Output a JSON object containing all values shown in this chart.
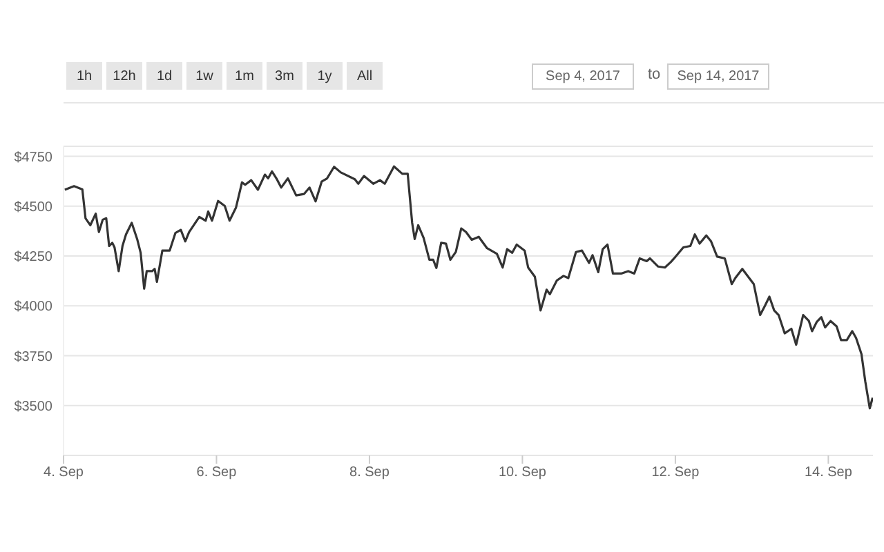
{
  "chart_data": {
    "type": "line",
    "annotations": [
      "1h",
      "12h",
      "1d",
      "1w",
      "1m",
      "3m",
      "1y",
      "All",
      "Sep 4, 2017",
      "to",
      "Sep 14, 2017"
    ],
    "x": [
      "2017-09-04T00:24",
      "2017-09-04T03:18",
      "2017-09-04T05:54",
      "2017-09-04T06:54",
      "2017-09-04T08:24",
      "2017-09-04T10:06",
      "2017-09-04T11:06",
      "2017-09-04T12:18",
      "2017-09-04T13:24",
      "2017-09-04T14:18",
      "2017-09-04T15:18",
      "2017-09-04T16:00",
      "2017-09-04T17:18",
      "2017-09-04T18:30",
      "2017-09-04T19:36",
      "2017-09-04T21:24",
      "2017-09-04T23:06",
      "2017-09-05T00:12",
      "2017-09-05T01:18",
      "2017-09-05T02:06",
      "2017-09-05T03:48",
      "2017-09-05T04:36",
      "2017-09-05T05:18",
      "2017-09-05T07:00",
      "2017-09-05T09:18",
      "2017-09-05T11:06",
      "2017-09-05T12:48",
      "2017-09-05T14:12",
      "2017-09-05T15:24",
      "2017-09-05T18:36",
      "2017-09-05T20:36",
      "2017-09-05T21:24",
      "2017-09-05T22:36",
      "2017-09-06T00:30",
      "2017-09-06T02:36",
      "2017-09-06T04:06",
      "2017-09-06T06:06",
      "2017-09-06T08:00",
      "2017-09-06T09:00",
      "2017-09-06T10:54",
      "2017-09-06T13:00",
      "2017-09-06T15:12",
      "2017-09-06T16:12",
      "2017-09-06T17:24",
      "2017-09-06T18:48",
      "2017-09-06T20:18",
      "2017-09-06T22:24",
      "2017-09-07T01:00",
      "2017-09-07T03:30",
      "2017-09-07T05:12",
      "2017-09-07T07:06",
      "2017-09-07T09:00",
      "2017-09-07T10:42",
      "2017-09-07T12:54",
      "2017-09-07T15:00",
      "2017-09-07T19:24",
      "2017-09-07T20:30",
      "2017-09-07T22:18",
      "2017-09-08T01:12",
      "2017-09-08T03:18",
      "2017-09-08T04:48",
      "2017-09-08T07:42",
      "2017-09-08T10:18",
      "2017-09-08T12:00",
      "2017-09-08T13:24",
      "2017-09-08T14:12",
      "2017-09-08T15:18",
      "2017-09-08T17:00",
      "2017-09-08T18:48",
      "2017-09-08T20:00",
      "2017-09-08T21:00",
      "2017-09-08T22:30",
      "2017-09-09T00:00",
      "2017-09-09T01:24",
      "2017-09-09T03:06",
      "2017-09-09T04:48",
      "2017-09-09T06:18",
      "2017-09-09T08:06",
      "2017-09-09T10:18",
      "2017-09-09T12:54",
      "2017-09-09T16:00",
      "2017-09-09T17:48",
      "2017-09-09T19:12",
      "2017-09-09T20:48",
      "2017-09-09T22:12",
      "2017-09-10T00:42",
      "2017-09-10T01:48",
      "2017-09-10T03:54",
      "2017-09-10T05:42",
      "2017-09-10T07:36",
      "2017-09-10T08:36",
      "2017-09-10T10:48",
      "2017-09-10T12:54",
      "2017-09-10T14:24",
      "2017-09-10T16:48",
      "2017-09-10T18:42",
      "2017-09-10T20:54",
      "2017-09-10T22:00",
      "2017-09-10T23:48",
      "2017-09-11T01:12",
      "2017-09-11T02:42",
      "2017-09-11T04:24",
      "2017-09-11T07:00",
      "2017-09-11T09:12",
      "2017-09-11T11:06",
      "2017-09-11T12:48",
      "2017-09-11T15:00",
      "2017-09-11T16:00",
      "2017-09-11T18:36",
      "2017-09-11T20:42",
      "2017-09-11T22:36",
      "2017-09-11T23:36",
      "2017-09-12T02:30",
      "2017-09-12T04:42",
      "2017-09-12T06:06",
      "2017-09-12T07:36",
      "2017-09-12T09:42",
      "2017-09-12T11:12",
      "2017-09-12T13:06",
      "2017-09-12T15:30",
      "2017-09-12T17:42",
      "2017-09-12T18:48",
      "2017-09-12T21:00",
      "2017-09-13T00:36",
      "2017-09-13T02:36",
      "2017-09-13T04:06",
      "2017-09-13T05:30",
      "2017-09-13T07:00",
      "2017-09-13T08:24",
      "2017-09-13T10:18",
      "2017-09-13T12:24",
      "2017-09-13T13:54",
      "2017-09-13T16:06",
      "2017-09-13T17:54",
      "2017-09-13T18:54",
      "2017-09-13T20:24",
      "2017-09-13T21:48",
      "2017-09-13T23:00",
      "2017-09-14T00:42",
      "2017-09-14T02:36",
      "2017-09-14T04:00",
      "2017-09-14T05:48",
      "2017-09-14T07:30",
      "2017-09-14T08:42",
      "2017-09-14T10:24",
      "2017-09-14T11:36",
      "2017-09-14T13:00",
      "2017-09-14T13:54"
    ],
    "series": [
      {
        "color": "#333333",
        "values": [
          4582,
          4600,
          4584,
          4439,
          4404,
          4462,
          4370,
          4432,
          4439,
          4300,
          4316,
          4293,
          4174,
          4300,
          4358,
          4416,
          4335,
          4266,
          4086,
          4174,
          4174,
          4185,
          4120,
          4277,
          4277,
          4365,
          4381,
          4323,
          4370,
          4446,
          4427,
          4473,
          4427,
          4526,
          4501,
          4427,
          4492,
          4619,
          4607,
          4630,
          4582,
          4658,
          4639,
          4674,
          4639,
          4593,
          4639,
          4554,
          4561,
          4593,
          4524,
          4623,
          4639,
          4697,
          4669,
          4635,
          4612,
          4651,
          4612,
          4630,
          4612,
          4699,
          4662,
          4662,
          4416,
          4335,
          4404,
          4340,
          4231,
          4231,
          4190,
          4316,
          4312,
          4231,
          4270,
          4388,
          4370,
          4331,
          4346,
          4289,
          4261,
          4192,
          4284,
          4266,
          4307,
          4277,
          4192,
          4146,
          3977,
          4081,
          4058,
          4127,
          4150,
          4139,
          4270,
          4277,
          4215,
          4254,
          4169,
          4284,
          4307,
          4162,
          4162,
          4174,
          4162,
          4238,
          4224,
          4238,
          4197,
          4192,
          4220,
          4238,
          4293,
          4300,
          4358,
          4312,
          4353,
          4323,
          4247,
          4238,
          4109,
          4139,
          4185,
          4109,
          3954,
          4000,
          4046,
          3977,
          3954,
          3862,
          3885,
          3805,
          3954,
          3924,
          3873,
          3920,
          3943,
          3892,
          3924,
          3897,
          3828,
          3828,
          3873,
          3839,
          3758,
          3620,
          3486,
          3539
        ]
      }
    ],
    "xlim": [
      "2017-09-04",
      "2017-09-14T14:00"
    ],
    "xticks": [
      {
        "value": "2017-09-04",
        "label": "4. Sep"
      },
      {
        "value": "2017-09-06",
        "label": "6. Sep"
      },
      {
        "value": "2017-09-08",
        "label": "8. Sep"
      },
      {
        "value": "2017-09-10",
        "label": "10. Sep"
      },
      {
        "value": "2017-09-12",
        "label": "12. Sep"
      },
      {
        "value": "2017-09-14",
        "label": "14. Sep"
      }
    ],
    "ylim": [
      3250,
      4800
    ],
    "yticks": [
      {
        "value": 3500,
        "label": "$3500"
      },
      {
        "value": 3750,
        "label": "$3750"
      },
      {
        "value": 4000,
        "label": "$4000"
      },
      {
        "value": 4250,
        "label": "$4250"
      },
      {
        "value": 4500,
        "label": "$4500"
      },
      {
        "value": 4750,
        "label": "$4750"
      }
    ],
    "grid": "y",
    "marker": "none",
    "line_style": "solid",
    "legend": false
  }
}
